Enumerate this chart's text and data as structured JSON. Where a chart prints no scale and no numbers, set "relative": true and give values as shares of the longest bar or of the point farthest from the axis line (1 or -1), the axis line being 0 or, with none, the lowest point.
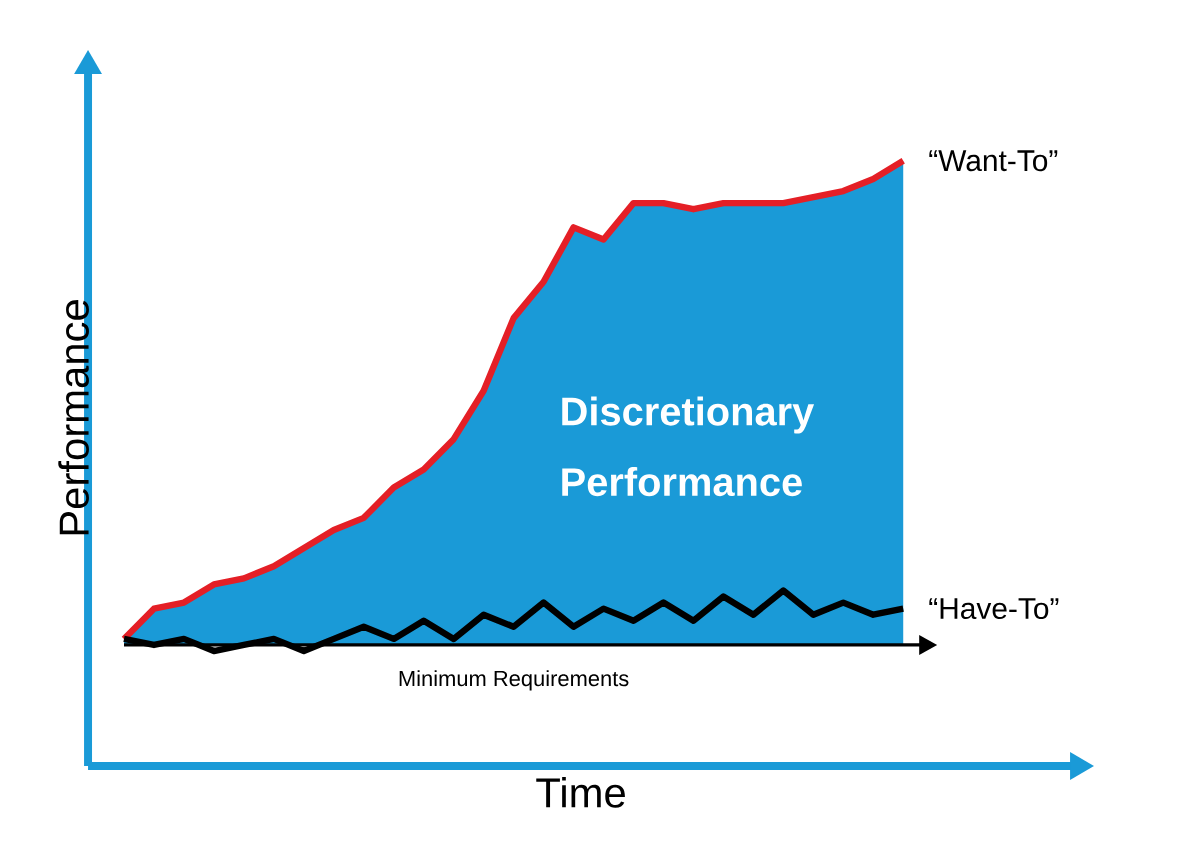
{
  "chart_data": {
    "type": "line",
    "relative": true,
    "xlabel": "Time",
    "ylabel": "Performance",
    "categories": [
      null,
      null,
      null,
      null,
      null,
      null,
      null,
      null,
      null,
      null,
      null,
      null,
      null,
      null,
      null,
      null,
      null,
      null,
      null,
      null,
      null,
      null,
      null,
      null,
      null,
      null,
      null
    ],
    "series": [
      {
        "type": "area",
        "color": "#1a9ad7",
        "values": [
          0.21,
          0.26,
          0.27,
          0.3,
          0.31,
          0.33,
          0.36,
          0.39,
          0.41,
          0.46,
          0.49,
          0.54,
          0.62,
          0.74,
          0.8,
          0.89,
          0.87,
          0.93,
          0.93,
          0.92,
          0.93,
          0.93,
          0.93,
          0.94,
          0.95,
          0.97,
          1
        ]
      },
      {
        "name": "“Want-To”",
        "color": "#e41f26",
        "values": [
          0.21,
          0.26,
          0.27,
          0.3,
          0.31,
          0.33,
          0.36,
          0.39,
          0.41,
          0.46,
          0.49,
          0.54,
          0.62,
          0.74,
          0.8,
          0.89,
          0.87,
          0.93,
          0.93,
          0.92,
          0.93,
          0.93,
          0.93,
          0.94,
          0.95,
          0.97,
          1
        ]
      },
      {
        "name": "“Have-To”",
        "color": "#000000",
        "values": [
          0.21,
          0.2,
          0.21,
          0.19,
          0.2,
          0.21,
          0.19,
          0.21,
          0.23,
          0.21,
          0.24,
          0.21,
          0.25,
          0.23,
          0.27,
          0.23,
          0.26,
          0.24,
          0.27,
          0.24,
          0.28,
          0.25,
          0.29,
          0.25,
          0.27,
          0.25,
          0.26
        ]
      }
    ],
    "ref_lines": [
      {
        "axis": "y",
        "value": 0.2,
        "label": "Minimum Requirements",
        "color": "#000000"
      }
    ],
    "annotations": [
      "Discretionary",
      "Performance"
    ],
    "legend": "right"
  }
}
